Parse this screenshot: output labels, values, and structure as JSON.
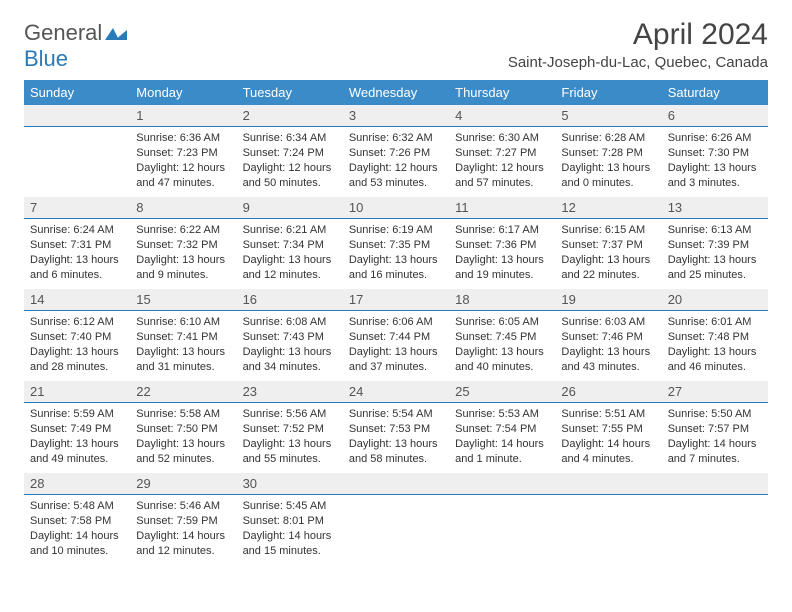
{
  "brand": {
    "name1": "General",
    "name2": "Blue",
    "shape_color": "#2a7ab8"
  },
  "header": {
    "title": "April 2024",
    "location": "Saint-Joseph-du-Lac, Quebec, Canada"
  },
  "colors": {
    "header_bg": "#3b8bc8",
    "header_text": "#ffffff",
    "daynum_bg": "#efefef",
    "daynum_border": "#2a7ab8"
  },
  "weekdays": [
    "Sunday",
    "Monday",
    "Tuesday",
    "Wednesday",
    "Thursday",
    "Friday",
    "Saturday"
  ],
  "weeks": [
    [
      {
        "n": "",
        "sunrise": "",
        "sunset": "",
        "daylight": ""
      },
      {
        "n": "1",
        "sunrise": "Sunrise: 6:36 AM",
        "sunset": "Sunset: 7:23 PM",
        "daylight": "Daylight: 12 hours and 47 minutes."
      },
      {
        "n": "2",
        "sunrise": "Sunrise: 6:34 AM",
        "sunset": "Sunset: 7:24 PM",
        "daylight": "Daylight: 12 hours and 50 minutes."
      },
      {
        "n": "3",
        "sunrise": "Sunrise: 6:32 AM",
        "sunset": "Sunset: 7:26 PM",
        "daylight": "Daylight: 12 hours and 53 minutes."
      },
      {
        "n": "4",
        "sunrise": "Sunrise: 6:30 AM",
        "sunset": "Sunset: 7:27 PM",
        "daylight": "Daylight: 12 hours and 57 minutes."
      },
      {
        "n": "5",
        "sunrise": "Sunrise: 6:28 AM",
        "sunset": "Sunset: 7:28 PM",
        "daylight": "Daylight: 13 hours and 0 minutes."
      },
      {
        "n": "6",
        "sunrise": "Sunrise: 6:26 AM",
        "sunset": "Sunset: 7:30 PM",
        "daylight": "Daylight: 13 hours and 3 minutes."
      }
    ],
    [
      {
        "n": "7",
        "sunrise": "Sunrise: 6:24 AM",
        "sunset": "Sunset: 7:31 PM",
        "daylight": "Daylight: 13 hours and 6 minutes."
      },
      {
        "n": "8",
        "sunrise": "Sunrise: 6:22 AM",
        "sunset": "Sunset: 7:32 PM",
        "daylight": "Daylight: 13 hours and 9 minutes."
      },
      {
        "n": "9",
        "sunrise": "Sunrise: 6:21 AM",
        "sunset": "Sunset: 7:34 PM",
        "daylight": "Daylight: 13 hours and 12 minutes."
      },
      {
        "n": "10",
        "sunrise": "Sunrise: 6:19 AM",
        "sunset": "Sunset: 7:35 PM",
        "daylight": "Daylight: 13 hours and 16 minutes."
      },
      {
        "n": "11",
        "sunrise": "Sunrise: 6:17 AM",
        "sunset": "Sunset: 7:36 PM",
        "daylight": "Daylight: 13 hours and 19 minutes."
      },
      {
        "n": "12",
        "sunrise": "Sunrise: 6:15 AM",
        "sunset": "Sunset: 7:37 PM",
        "daylight": "Daylight: 13 hours and 22 minutes."
      },
      {
        "n": "13",
        "sunrise": "Sunrise: 6:13 AM",
        "sunset": "Sunset: 7:39 PM",
        "daylight": "Daylight: 13 hours and 25 minutes."
      }
    ],
    [
      {
        "n": "14",
        "sunrise": "Sunrise: 6:12 AM",
        "sunset": "Sunset: 7:40 PM",
        "daylight": "Daylight: 13 hours and 28 minutes."
      },
      {
        "n": "15",
        "sunrise": "Sunrise: 6:10 AM",
        "sunset": "Sunset: 7:41 PM",
        "daylight": "Daylight: 13 hours and 31 minutes."
      },
      {
        "n": "16",
        "sunrise": "Sunrise: 6:08 AM",
        "sunset": "Sunset: 7:43 PM",
        "daylight": "Daylight: 13 hours and 34 minutes."
      },
      {
        "n": "17",
        "sunrise": "Sunrise: 6:06 AM",
        "sunset": "Sunset: 7:44 PM",
        "daylight": "Daylight: 13 hours and 37 minutes."
      },
      {
        "n": "18",
        "sunrise": "Sunrise: 6:05 AM",
        "sunset": "Sunset: 7:45 PM",
        "daylight": "Daylight: 13 hours and 40 minutes."
      },
      {
        "n": "19",
        "sunrise": "Sunrise: 6:03 AM",
        "sunset": "Sunset: 7:46 PM",
        "daylight": "Daylight: 13 hours and 43 minutes."
      },
      {
        "n": "20",
        "sunrise": "Sunrise: 6:01 AM",
        "sunset": "Sunset: 7:48 PM",
        "daylight": "Daylight: 13 hours and 46 minutes."
      }
    ],
    [
      {
        "n": "21",
        "sunrise": "Sunrise: 5:59 AM",
        "sunset": "Sunset: 7:49 PM",
        "daylight": "Daylight: 13 hours and 49 minutes."
      },
      {
        "n": "22",
        "sunrise": "Sunrise: 5:58 AM",
        "sunset": "Sunset: 7:50 PM",
        "daylight": "Daylight: 13 hours and 52 minutes."
      },
      {
        "n": "23",
        "sunrise": "Sunrise: 5:56 AM",
        "sunset": "Sunset: 7:52 PM",
        "daylight": "Daylight: 13 hours and 55 minutes."
      },
      {
        "n": "24",
        "sunrise": "Sunrise: 5:54 AM",
        "sunset": "Sunset: 7:53 PM",
        "daylight": "Daylight: 13 hours and 58 minutes."
      },
      {
        "n": "25",
        "sunrise": "Sunrise: 5:53 AM",
        "sunset": "Sunset: 7:54 PM",
        "daylight": "Daylight: 14 hours and 1 minute."
      },
      {
        "n": "26",
        "sunrise": "Sunrise: 5:51 AM",
        "sunset": "Sunset: 7:55 PM",
        "daylight": "Daylight: 14 hours and 4 minutes."
      },
      {
        "n": "27",
        "sunrise": "Sunrise: 5:50 AM",
        "sunset": "Sunset: 7:57 PM",
        "daylight": "Daylight: 14 hours and 7 minutes."
      }
    ],
    [
      {
        "n": "28",
        "sunrise": "Sunrise: 5:48 AM",
        "sunset": "Sunset: 7:58 PM",
        "daylight": "Daylight: 14 hours and 10 minutes."
      },
      {
        "n": "29",
        "sunrise": "Sunrise: 5:46 AM",
        "sunset": "Sunset: 7:59 PM",
        "daylight": "Daylight: 14 hours and 12 minutes."
      },
      {
        "n": "30",
        "sunrise": "Sunrise: 5:45 AM",
        "sunset": "Sunset: 8:01 PM",
        "daylight": "Daylight: 14 hours and 15 minutes."
      },
      {
        "n": "",
        "sunrise": "",
        "sunset": "",
        "daylight": ""
      },
      {
        "n": "",
        "sunrise": "",
        "sunset": "",
        "daylight": ""
      },
      {
        "n": "",
        "sunrise": "",
        "sunset": "",
        "daylight": ""
      },
      {
        "n": "",
        "sunrise": "",
        "sunset": "",
        "daylight": ""
      }
    ]
  ]
}
